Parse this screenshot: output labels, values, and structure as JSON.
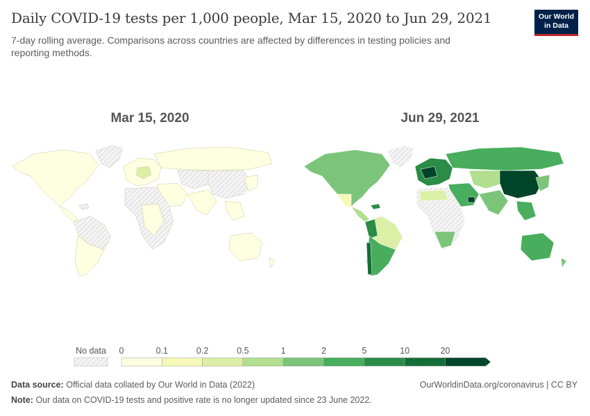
{
  "title": "Daily COVID-19 tests per 1,000 people, Mar 15, 2020 to Jun 29, 2021",
  "subtitle": "7-day rolling average. Comparisons across countries are affected by differences in testing policies and reporting methods.",
  "logo": {
    "line1": "Our World",
    "line2": "in Data"
  },
  "maps": [
    {
      "date": "Mar 15, 2020"
    },
    {
      "date": "Jun 29, 2021"
    }
  ],
  "legend": {
    "no_data_label": "No data",
    "ticks": [
      "0",
      "0.1",
      "0.2",
      "0.5",
      "1",
      "2",
      "5",
      "10",
      "20"
    ],
    "colors": [
      "#fefee0",
      "#f5f8b8",
      "#dcefa6",
      "#b1de8f",
      "#7cc47a",
      "#48ad5c",
      "#2b8c47",
      "#146e37",
      "#004529"
    ]
  },
  "footer": {
    "source_label": "Data source:",
    "source_text": "Official data collated by Our World in Data (2022)",
    "url": "OurWorldinData.org/coronavirus | CC BY",
    "note_label": "Note:",
    "note_text": "Our data on COVID-19 tests and positive rate is no longer updated since 23 June 2022."
  }
}
